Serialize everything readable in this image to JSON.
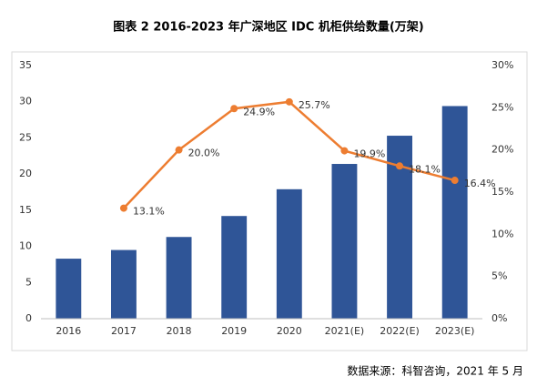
{
  "chart_data": {
    "type": "combo",
    "title": "图表 2 2016-2023 年广深地区 IDC 机柜供给数量(万架)",
    "source": "数据来源：科智咨询，2021 年 5 月",
    "categories": [
      "2016",
      "2017",
      "2018",
      "2019",
      "2020",
      "2021(E)",
      "2022(E)",
      "2023(E)"
    ],
    "series": [
      {
        "type": "bar",
        "color": "#2f5597",
        "values": [
          8.3,
          9.5,
          11.3,
          14.2,
          17.9,
          21.4,
          25.3,
          29.4
        ]
      },
      {
        "type": "line",
        "axis": "y2",
        "color": "#ed7d31",
        "values": [
          null,
          13.1,
          20.0,
          24.9,
          25.7,
          19.9,
          18.1,
          16.4
        ],
        "value_labels": [
          null,
          "13.1%",
          "20.0%",
          "24.9%",
          "25.7%",
          "19.9%",
          "18.1%",
          "16.4%"
        ]
      }
    ],
    "ylim": [
      0,
      35
    ],
    "yticks": [
      0,
      5,
      10,
      15,
      20,
      25,
      30,
      35
    ],
    "y2lim": [
      0,
      30
    ],
    "y2ticks": [
      {
        "value": 0,
        "label": "0%"
      },
      {
        "value": 5,
        "label": "5%"
      },
      {
        "value": 10,
        "label": "10%"
      },
      {
        "value": 15,
        "label": "15%"
      },
      {
        "value": 20,
        "label": "20%"
      },
      {
        "value": 25,
        "label": "25%"
      },
      {
        "value": 30,
        "label": "30%"
      }
    ]
  }
}
